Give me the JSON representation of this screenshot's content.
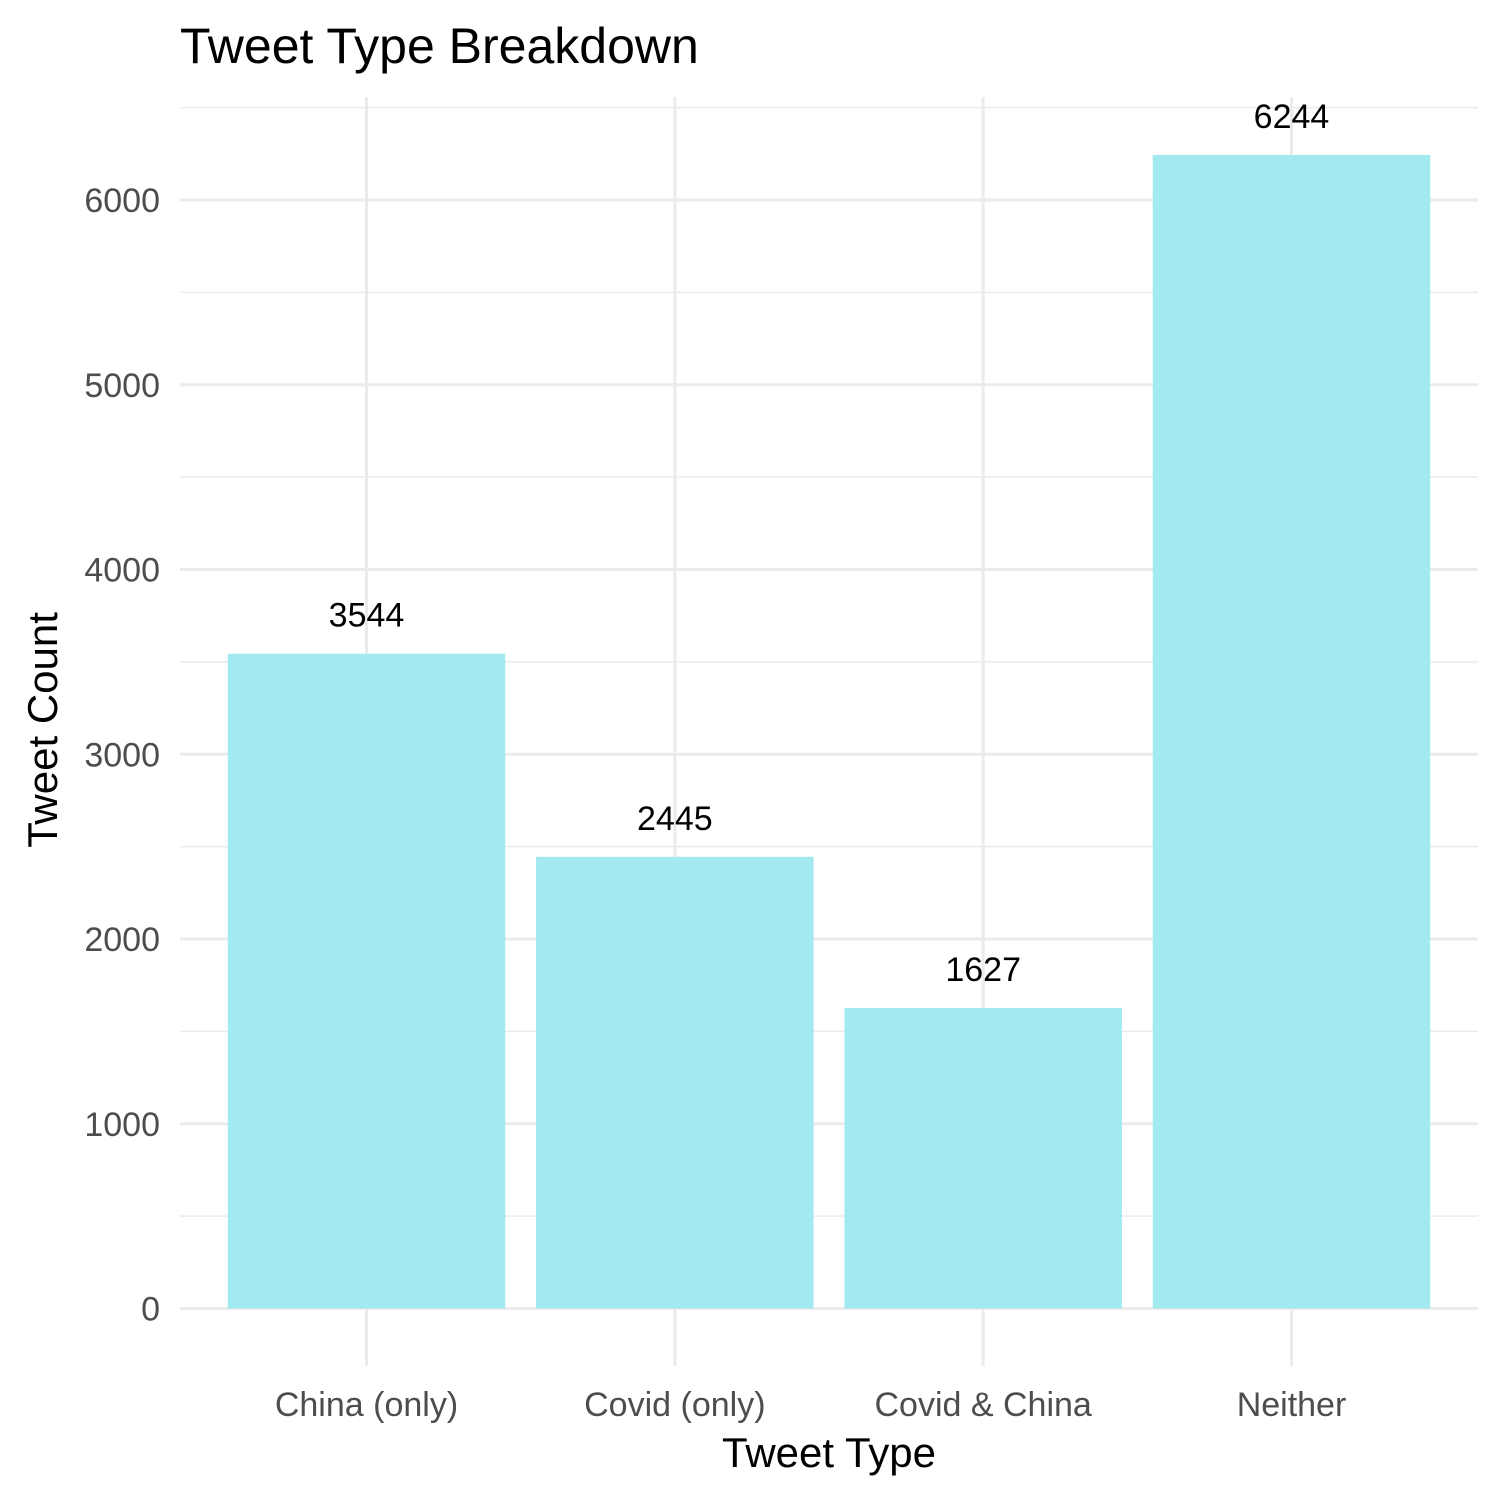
{
  "chart_data": {
    "type": "bar",
    "title": "Tweet Type Breakdown",
    "xlabel": "Tweet Type",
    "ylabel": "Tweet Count",
    "categories": [
      "China (only)",
      "Covid (only)",
      "Covid & China",
      "Neither"
    ],
    "values": [
      3544,
      2445,
      1627,
      6244
    ],
    "data_labels": [
      "3544",
      "2445",
      "1627",
      "6244"
    ],
    "ylim": [
      0,
      6556
    ],
    "yticks": [
      0,
      1000,
      2000,
      3000,
      4000,
      5000,
      6000
    ],
    "ytick_labels": [
      "0",
      "1000",
      "2000",
      "3000",
      "4000",
      "5000",
      "6000"
    ],
    "grid": true,
    "legend": "none",
    "bar_color": "#a3e9f0"
  }
}
